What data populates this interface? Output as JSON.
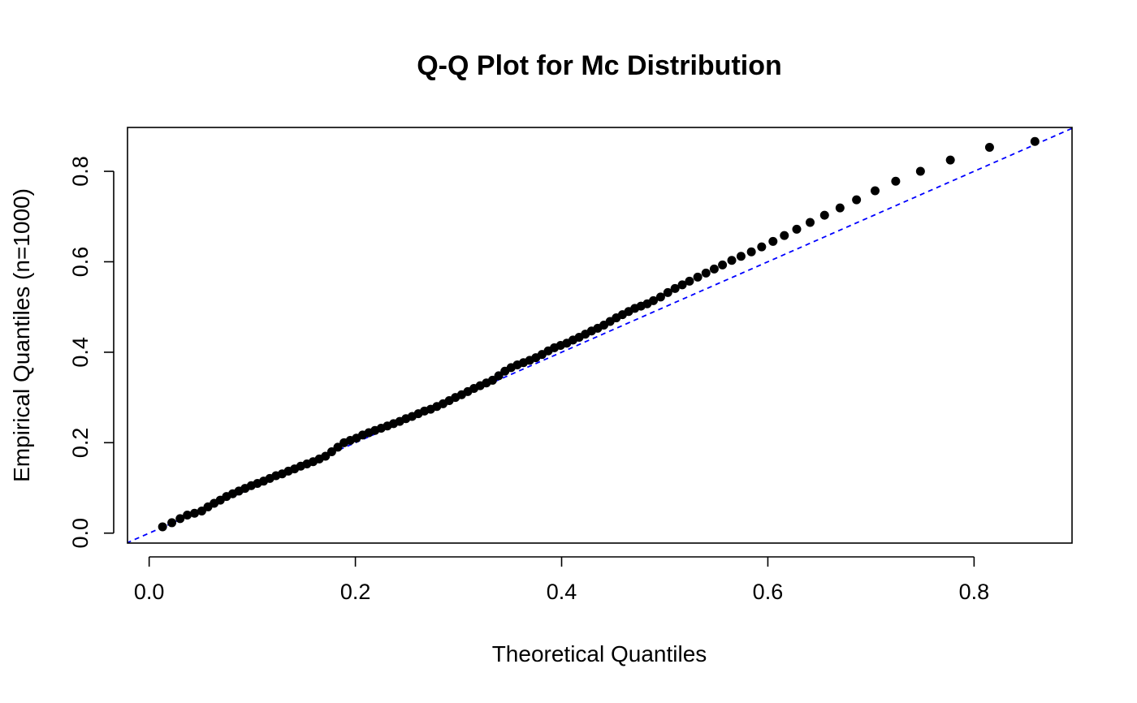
{
  "chart_data": {
    "type": "scatter",
    "title": "Q-Q Plot for Mc Distribution",
    "xlabel": "Theoretical Quantiles",
    "ylabel": "Empirical Quantiles (n=1000)",
    "xlim": [
      -0.021,
      0.895
    ],
    "ylim": [
      -0.022,
      0.897
    ],
    "x_ticks": [
      0.0,
      0.2,
      0.4,
      0.6,
      0.8
    ],
    "x_tick_labels": [
      "0.0",
      "0.2",
      "0.4",
      "0.6",
      "0.8"
    ],
    "y_ticks": [
      0.0,
      0.2,
      0.4,
      0.6,
      0.8
    ],
    "y_tick_labels": [
      "0.0",
      "0.2",
      "0.4",
      "0.6",
      "0.8"
    ],
    "grid": false,
    "legend": "none",
    "reference_line": {
      "slope": 1,
      "intercept": 0,
      "color": "#0000ff",
      "style": "dashed"
    },
    "point_color": "#000000",
    "series": [
      {
        "points": [
          [
            0.013,
            0.014
          ],
          [
            0.022,
            0.023
          ],
          [
            0.03,
            0.032
          ],
          [
            0.037,
            0.04
          ],
          [
            0.044,
            0.044
          ],
          [
            0.051,
            0.049
          ],
          [
            0.057,
            0.058
          ],
          [
            0.063,
            0.066
          ],
          [
            0.069,
            0.073
          ],
          [
            0.075,
            0.081
          ],
          [
            0.081,
            0.087
          ],
          [
            0.087,
            0.093
          ],
          [
            0.093,
            0.099
          ],
          [
            0.099,
            0.105
          ],
          [
            0.105,
            0.11
          ],
          [
            0.111,
            0.115
          ],
          [
            0.117,
            0.121
          ],
          [
            0.123,
            0.127
          ],
          [
            0.129,
            0.131
          ],
          [
            0.135,
            0.137
          ],
          [
            0.141,
            0.142
          ],
          [
            0.147,
            0.148
          ],
          [
            0.153,
            0.153
          ],
          [
            0.159,
            0.158
          ],
          [
            0.165,
            0.164
          ],
          [
            0.171,
            0.17
          ],
          [
            0.177,
            0.18
          ],
          [
            0.183,
            0.19
          ],
          [
            0.189,
            0.2
          ],
          [
            0.195,
            0.205
          ],
          [
            0.201,
            0.21
          ],
          [
            0.207,
            0.217
          ],
          [
            0.213,
            0.222
          ],
          [
            0.219,
            0.227
          ],
          [
            0.225,
            0.232
          ],
          [
            0.231,
            0.237
          ],
          [
            0.237,
            0.242
          ],
          [
            0.243,
            0.247
          ],
          [
            0.249,
            0.253
          ],
          [
            0.255,
            0.258
          ],
          [
            0.261,
            0.264
          ],
          [
            0.267,
            0.27
          ],
          [
            0.273,
            0.274
          ],
          [
            0.279,
            0.28
          ],
          [
            0.285,
            0.286
          ],
          [
            0.291,
            0.293
          ],
          [
            0.297,
            0.3
          ],
          [
            0.303,
            0.306
          ],
          [
            0.309,
            0.313
          ],
          [
            0.315,
            0.32
          ],
          [
            0.321,
            0.326
          ],
          [
            0.327,
            0.332
          ],
          [
            0.333,
            0.338
          ],
          [
            0.339,
            0.348
          ],
          [
            0.345,
            0.358
          ],
          [
            0.351,
            0.366
          ],
          [
            0.357,
            0.372
          ],
          [
            0.363,
            0.377
          ],
          [
            0.369,
            0.382
          ],
          [
            0.375,
            0.388
          ],
          [
            0.381,
            0.395
          ],
          [
            0.387,
            0.403
          ],
          [
            0.393,
            0.41
          ],
          [
            0.399,
            0.415
          ],
          [
            0.405,
            0.42
          ],
          [
            0.411,
            0.427
          ],
          [
            0.417,
            0.433
          ],
          [
            0.423,
            0.44
          ],
          [
            0.429,
            0.447
          ],
          [
            0.435,
            0.453
          ],
          [
            0.441,
            0.46
          ],
          [
            0.447,
            0.468
          ],
          [
            0.453,
            0.476
          ],
          [
            0.459,
            0.483
          ],
          [
            0.465,
            0.49
          ],
          [
            0.471,
            0.497
          ],
          [
            0.477,
            0.502
          ],
          [
            0.483,
            0.507
          ],
          [
            0.489,
            0.514
          ],
          [
            0.496,
            0.522
          ],
          [
            0.503,
            0.532
          ],
          [
            0.51,
            0.541
          ],
          [
            0.517,
            0.549
          ],
          [
            0.524,
            0.557
          ],
          [
            0.532,
            0.566
          ],
          [
            0.54,
            0.575
          ],
          [
            0.548,
            0.584
          ],
          [
            0.556,
            0.593
          ],
          [
            0.565,
            0.603
          ],
          [
            0.574,
            0.612
          ],
          [
            0.584,
            0.622
          ],
          [
            0.594,
            0.633
          ],
          [
            0.605,
            0.645
          ],
          [
            0.616,
            0.658
          ],
          [
            0.628,
            0.672
          ],
          [
            0.641,
            0.687
          ],
          [
            0.655,
            0.703
          ],
          [
            0.67,
            0.719
          ],
          [
            0.686,
            0.737
          ],
          [
            0.704,
            0.757
          ],
          [
            0.724,
            0.778
          ],
          [
            0.748,
            0.8
          ],
          [
            0.777,
            0.825
          ],
          [
            0.815,
            0.853
          ],
          [
            0.859,
            0.866
          ]
        ]
      }
    ]
  }
}
